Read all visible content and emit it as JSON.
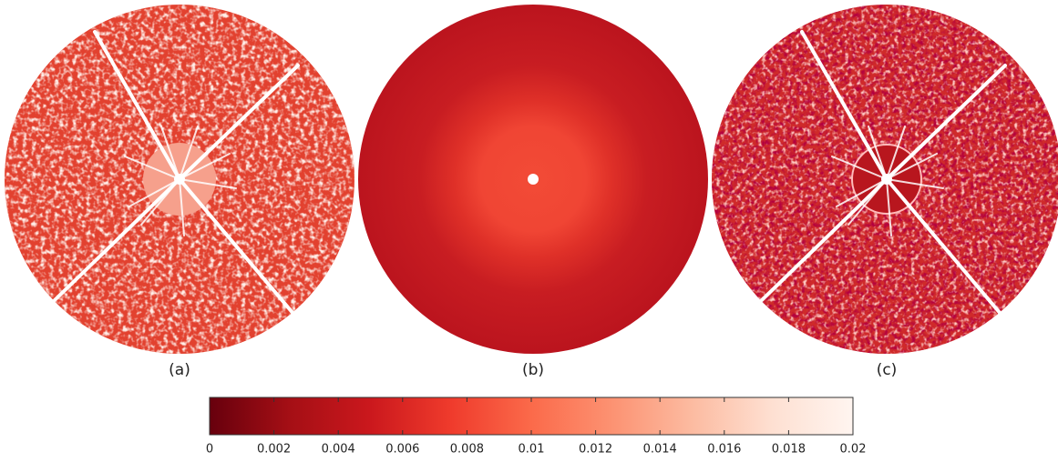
{
  "panels": [
    {
      "label": "(a)"
    },
    {
      "label": "(b)"
    },
    {
      "label": "(c)"
    }
  ],
  "colorbar": {
    "lim": [
      0,
      0.02
    ],
    "ticks": [
      0,
      0.002,
      0.004,
      0.006,
      0.008,
      0.01,
      0.012,
      0.014,
      0.016,
      0.018,
      0.02
    ]
  }
}
